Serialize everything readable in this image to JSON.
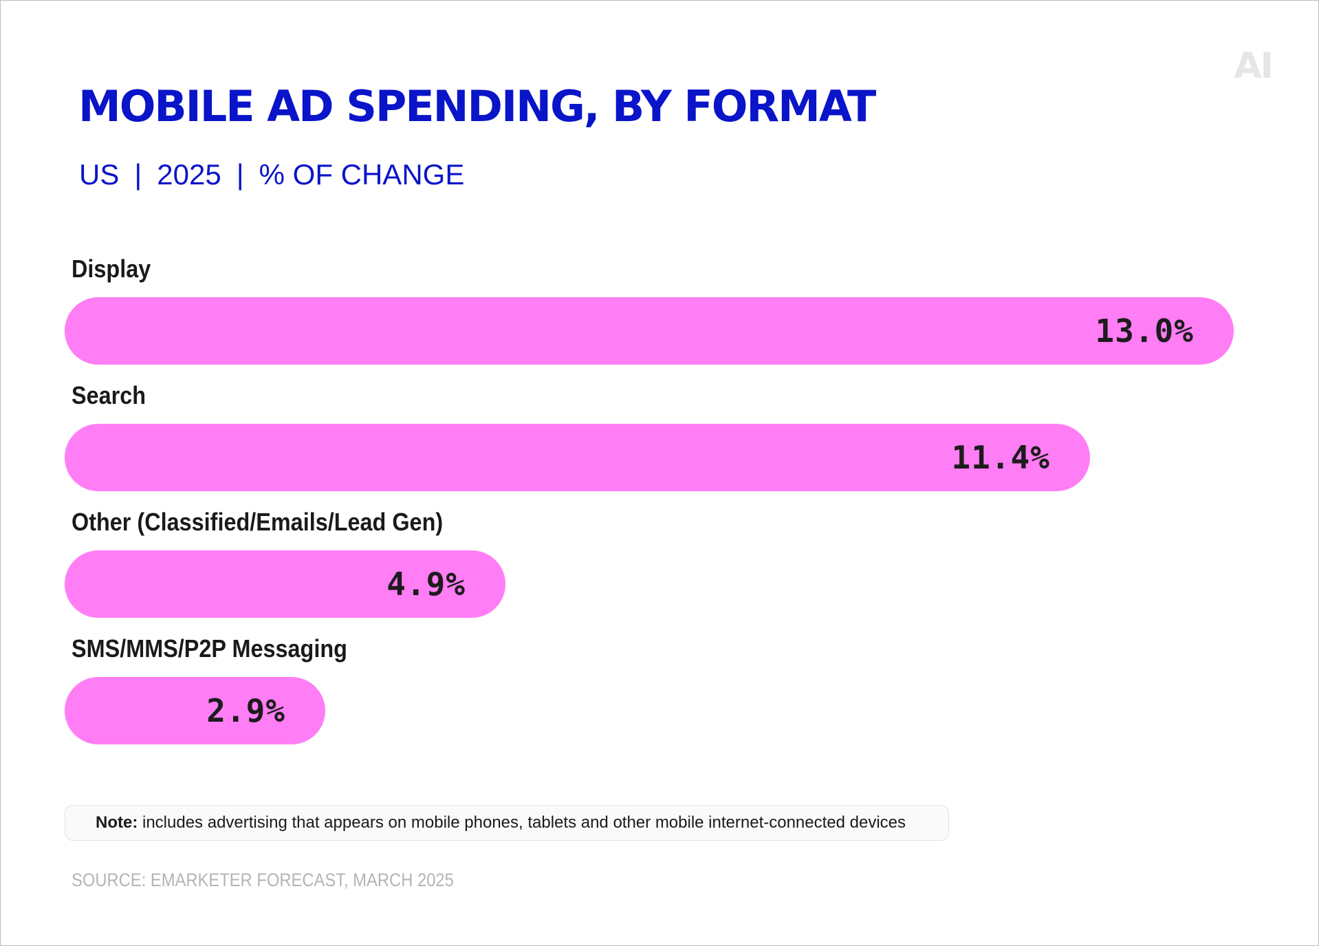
{
  "header": {
    "logo": "AI",
    "title": "MOBILE AD SPENDING, BY FORMAT",
    "subtitle_parts": [
      "US",
      "2025",
      "% OF CHANGE"
    ],
    "subtitle_separator": "|"
  },
  "colors": {
    "title": "#0a14c8",
    "bar": "#ff7df5",
    "label": "#1a1a1a",
    "source": "#b4b4b4"
  },
  "chart_data": {
    "type": "bar",
    "orientation": "horizontal",
    "title": "MOBILE AD SPENDING, BY FORMAT",
    "subtitle": "US | 2025 | % OF CHANGE",
    "categories": [
      "Display",
      "Search",
      "Other (Classified/Emails/Lead Gen)",
      "SMS/MMS/P2P Messaging"
    ],
    "values": [
      13.0,
      11.4,
      4.9,
      2.9
    ],
    "value_labels": [
      "13.0%",
      "11.4%",
      "4.9%",
      "2.9%"
    ],
    "unit": "%",
    "xlim": [
      0,
      13.0
    ],
    "grid": false,
    "legend": "none"
  },
  "footer": {
    "note_label": "Note:",
    "note_text": "includes advertising that appears on mobile phones, tablets and other mobile internet-connected devices",
    "source": "SOURCE: EMARKETER FORECAST, MARCH 2025"
  }
}
